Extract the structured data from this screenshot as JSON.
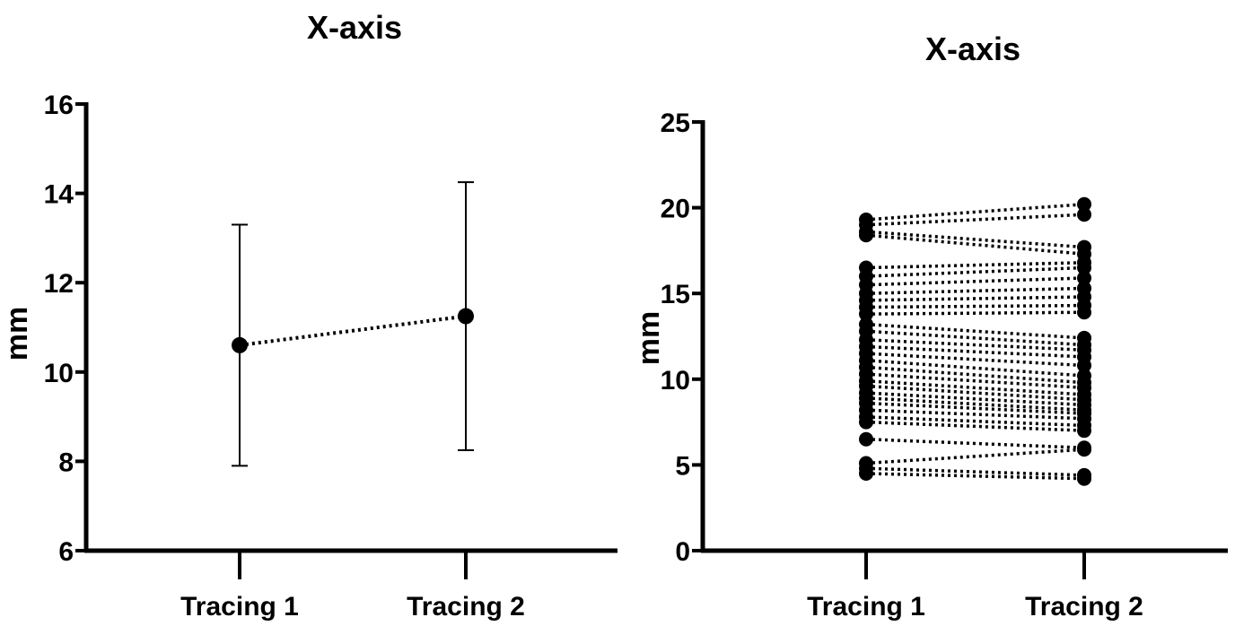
{
  "chart_data": [
    {
      "type": "scatter",
      "title": "X-axis",
      "ylabel": "mm",
      "xlabel": "",
      "categories": [
        "Tracing 1",
        "Tracing 2"
      ],
      "ylim": [
        6,
        16
      ],
      "yticks": [
        6,
        8,
        10,
        12,
        14,
        16
      ],
      "series": [
        {
          "mean": [
            10.6,
            11.25
          ],
          "error_low": [
            7.9,
            8.25
          ],
          "error_high": [
            13.3,
            14.25
          ]
        }
      ],
      "grid": false
    },
    {
      "type": "scatter",
      "title": "X-axis",
      "ylabel": "mm",
      "xlabel": "",
      "categories": [
        "Tracing 1",
        "Tracing 2"
      ],
      "ylim": [
        0,
        25
      ],
      "yticks": [
        0,
        5,
        10,
        15,
        20,
        25
      ],
      "pairs": [
        [
          19.3,
          20.2
        ],
        [
          19.0,
          19.6
        ],
        [
          18.6,
          17.7
        ],
        [
          18.4,
          17.3
        ],
        [
          16.5,
          16.8
        ],
        [
          16.0,
          16.5
        ],
        [
          15.5,
          15.9
        ],
        [
          15.0,
          15.3
        ],
        [
          14.6,
          14.8
        ],
        [
          14.2,
          14.3
        ],
        [
          13.8,
          13.9
        ],
        [
          13.2,
          12.4
        ],
        [
          12.8,
          12.0
        ],
        [
          12.3,
          11.7
        ],
        [
          11.9,
          11.3
        ],
        [
          11.5,
          10.8
        ],
        [
          11.1,
          10.2
        ],
        [
          10.7,
          9.8
        ],
        [
          10.3,
          9.5
        ],
        [
          9.9,
          9.1
        ],
        [
          9.6,
          8.8
        ],
        [
          9.2,
          8.5
        ],
        [
          8.9,
          8.2
        ],
        [
          8.6,
          8.0
        ],
        [
          8.2,
          7.7
        ],
        [
          7.8,
          7.3
        ],
        [
          7.5,
          7.0
        ],
        [
          6.5,
          6.0
        ],
        [
          5.1,
          5.9
        ],
        [
          4.8,
          4.4
        ],
        [
          4.5,
          4.2
        ]
      ],
      "grid": false
    }
  ]
}
